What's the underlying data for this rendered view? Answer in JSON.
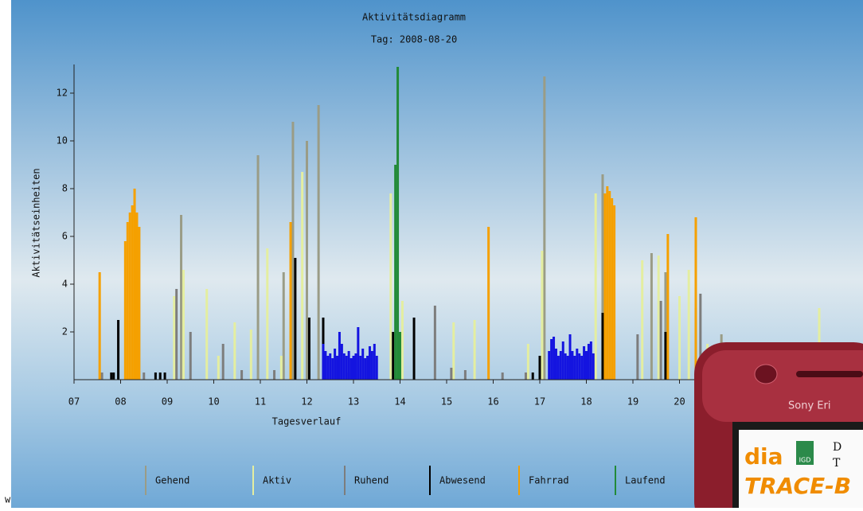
{
  "chart_data": {
    "type": "bar",
    "title": "Aktivitätsdiagramm",
    "subtitle": "Tag: 2008-08-20",
    "xlabel": "Tagesverlauf",
    "ylabel": "Aktivitätseinheiten",
    "xlim": [
      7,
      23.5
    ],
    "ylim": [
      0,
      13.2
    ],
    "xticks": [
      {
        "value": 7,
        "label": "07"
      },
      {
        "value": 8,
        "label": "08"
      },
      {
        "value": 9,
        "label": "09"
      },
      10,
      11,
      12,
      13,
      14,
      15,
      16,
      17,
      18,
      19,
      20
    ],
    "yticks": [
      2,
      4,
      6,
      8,
      10,
      12
    ],
    "series": [
      {
        "name": "Gehend",
        "color": "#9a9c86",
        "x": [
          9.3,
          10.95,
          11.5,
          11.7,
          12.0,
          12.25,
          17.1,
          18.35,
          19.4,
          19.7,
          20.9
        ],
        "values": [
          6.9,
          9.4,
          4.5,
          10.8,
          10.0,
          11.5,
          12.7,
          8.6,
          5.3,
          4.5,
          1.9
        ]
      },
      {
        "name": "Aktiv",
        "color": "#e4eea0",
        "x": [
          9.15,
          9.35,
          9.85,
          10.1,
          10.45,
          10.8,
          11.15,
          11.45,
          11.9,
          13.8,
          14.05,
          15.15,
          15.6,
          16.75,
          17.05,
          18.2,
          19.2,
          19.55,
          20.0,
          20.2,
          20.6,
          23.0
        ],
        "values": [
          3.5,
          4.6,
          3.8,
          1.0,
          2.4,
          2.1,
          5.5,
          1.0,
          8.7,
          7.8,
          3.3,
          2.4,
          2.5,
          1.5,
          5.4,
          7.8,
          5.0,
          5.2,
          3.5,
          4.6,
          1.5,
          3.0
        ]
      },
      {
        "name": "Ruhend",
        "color": "#7d7d7d",
        "x": [
          7.6,
          8.5,
          9.2,
          9.5,
          10.2,
          10.6,
          11.3,
          12.9,
          14.75,
          15.1,
          15.4,
          16.2,
          16.7,
          19.1,
          19.6,
          20.35,
          20.45
        ],
        "values": [
          0.3,
          0.3,
          3.8,
          2.0,
          1.5,
          0.4,
          0.4,
          0.3,
          3.1,
          0.5,
          0.4,
          0.3,
          0.3,
          1.9,
          3.3,
          3.0,
          3.6
        ]
      },
      {
        "name": "Abwesend",
        "color": "#000000",
        "x": [
          7.8,
          7.85,
          7.95,
          8.75,
          8.85,
          8.95,
          11.75,
          12.05,
          12.35,
          13.85,
          14.3,
          16.85,
          17.0,
          18.35,
          19.7
        ],
        "values": [
          0.3,
          0.3,
          2.5,
          0.3,
          0.3,
          0.3,
          5.1,
          2.6,
          2.6,
          2.0,
          2.6,
          0.3,
          1.0,
          2.8,
          2.0
        ]
      },
      {
        "name": "Fahrrad",
        "color": "#f5a000",
        "x": [
          7.55,
          8.1,
          8.15,
          8.2,
          8.25,
          8.3,
          8.35,
          8.4,
          11.65,
          15.9,
          18.4,
          18.45,
          18.5,
          18.55,
          18.6,
          19.75,
          20.35
        ],
        "values": [
          4.5,
          5.8,
          6.6,
          7.0,
          7.3,
          8.0,
          7.0,
          6.4,
          6.6,
          6.4,
          7.8,
          8.1,
          7.9,
          7.6,
          7.3,
          6.1,
          6.8
        ]
      },
      {
        "color": "#1414e0",
        "x": [
          12.35,
          12.4,
          12.45,
          12.5,
          12.55,
          12.6,
          12.65,
          12.7,
          12.75,
          12.8,
          12.85,
          12.9,
          12.95,
          13.0,
          13.05,
          13.1,
          13.15,
          13.2,
          13.25,
          13.3,
          13.35,
          13.4,
          13.45,
          13.5,
          17.2,
          17.25,
          17.3,
          17.35,
          17.4,
          17.45,
          17.5,
          17.55,
          17.6,
          17.65,
          17.7,
          17.75,
          17.8,
          17.85,
          17.9,
          17.95,
          18.0,
          18.05,
          18.1,
          18.15
        ],
        "values": [
          1.5,
          1.2,
          1.0,
          1.1,
          0.9,
          1.3,
          1.0,
          2.0,
          1.5,
          1.1,
          1.0,
          1.2,
          0.9,
          1.0,
          1.1,
          2.2,
          1.0,
          1.3,
          0.9,
          1.0,
          1.4,
          1.2,
          1.5,
          1.0,
          1.2,
          1.7,
          1.8,
          1.3,
          1.0,
          1.2,
          1.6,
          1.1,
          1.0,
          1.9,
          1.2,
          1.0,
          1.3,
          1.1,
          1.0,
          1.4,
          1.2,
          1.5,
          1.6,
          1.1
        ]
      },
      {
        "name": "Laufend",
        "color": "#228a38",
        "x": [
          13.9,
          13.95,
          14.0
        ],
        "values": [
          9.0,
          13.1,
          2.0
        ]
      }
    ]
  },
  "overlay": {
    "corner_text": "w",
    "brand": "Sony Eri",
    "logo_left": "dia",
    "logo_badge": "IGD",
    "line1": "D",
    "line2": "T",
    "logo_bottom": "TRACE-B"
  }
}
